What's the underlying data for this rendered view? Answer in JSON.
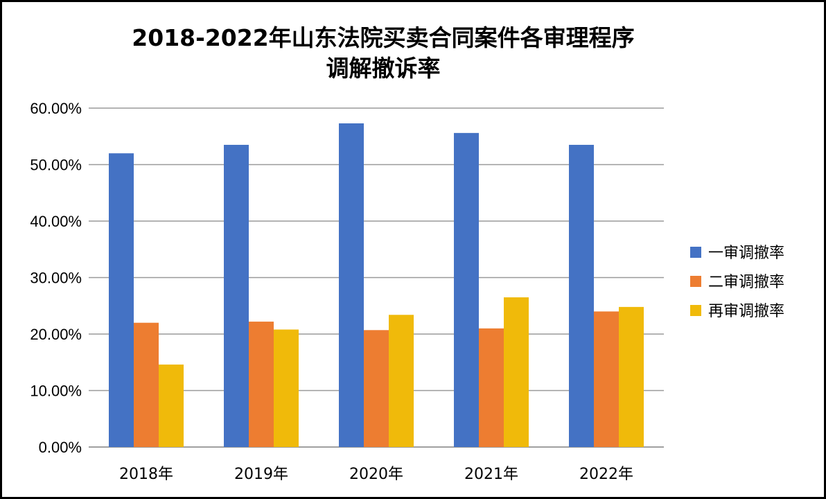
{
  "chart_data": {
    "type": "bar",
    "title_lines": [
      "2018-2022年山东法院买卖合同案件各审理程序",
      "调解撤诉率"
    ],
    "categories": [
      "2018年",
      "2019年",
      "2020年",
      "2021年",
      "2022年"
    ],
    "series": [
      {
        "name": "一审调撤率",
        "color": "#4472C4",
        "values": [
          52.0,
          53.5,
          57.3,
          55.6,
          53.5
        ]
      },
      {
        "name": "二审调撤率",
        "color": "#ED7D31",
        "values": [
          22.0,
          22.2,
          20.7,
          21.0,
          24.0
        ]
      },
      {
        "name": "再审调撤率",
        "color": "#F0BA0A",
        "values": [
          14.6,
          20.8,
          23.4,
          26.5,
          24.8
        ]
      }
    ],
    "y_ticks": [
      "0.00%",
      "10.00%",
      "20.00%",
      "30.00%",
      "40.00%",
      "50.00%",
      "60.00%"
    ],
    "ylim": [
      0,
      60
    ],
    "grid": true,
    "legend_position": "right"
  }
}
